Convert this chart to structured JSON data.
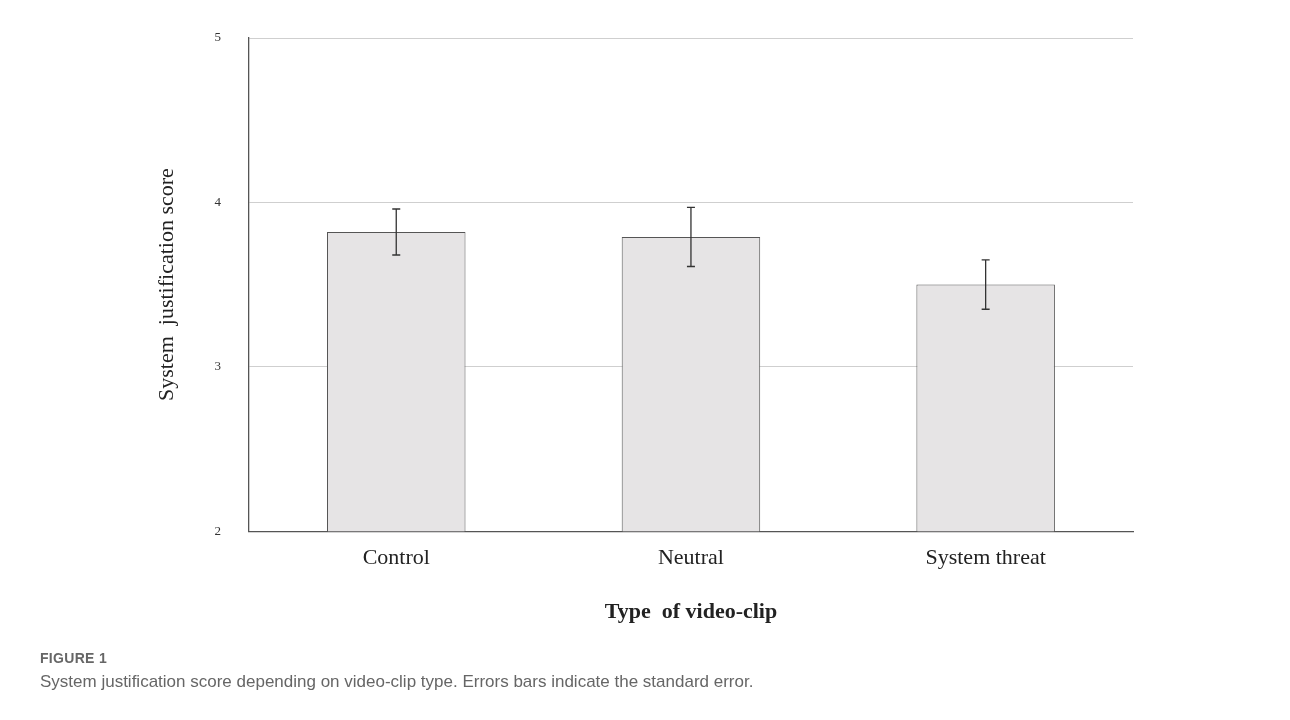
{
  "chart_data": {
    "type": "bar",
    "xlabel": "Type  of video-clip",
    "ylabel": "System  justification score",
    "categories": [
      "Control",
      "Neutral",
      "System threat"
    ],
    "values": [
      3.82,
      3.79,
      3.5
    ],
    "errors": [
      0.14,
      0.18,
      0.15
    ],
    "color": "#e6e4e5",
    "ylim": [
      2,
      5
    ],
    "yticks": [
      2,
      3,
      4,
      5
    ],
    "grid": "y",
    "annotations": [
      "FIGURE 1",
      "System justification score depending on video-clip type. Errors bars indicate the standard error."
    ]
  }
}
